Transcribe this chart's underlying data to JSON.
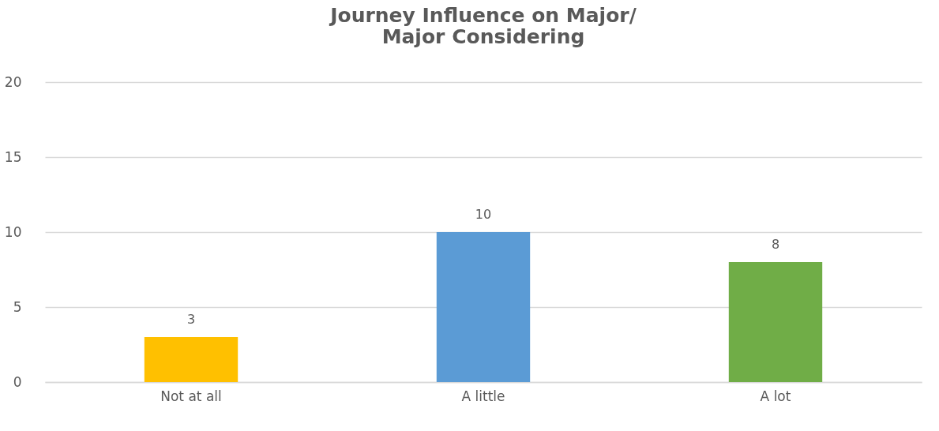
{
  "chart_data": {
    "type": "bar",
    "title": "Journey Influence on Major/\nMajor Considering",
    "categories": [
      "Not at all",
      "A little",
      "A lot"
    ],
    "values": [
      3,
      10,
      8
    ],
    "colors": [
      "#ffc000",
      "#5b9bd5",
      "#70ad47"
    ],
    "ylim": [
      0,
      20
    ],
    "yticks": [
      0,
      5,
      10,
      15,
      20
    ],
    "grid": "y",
    "data_labels": true
  }
}
